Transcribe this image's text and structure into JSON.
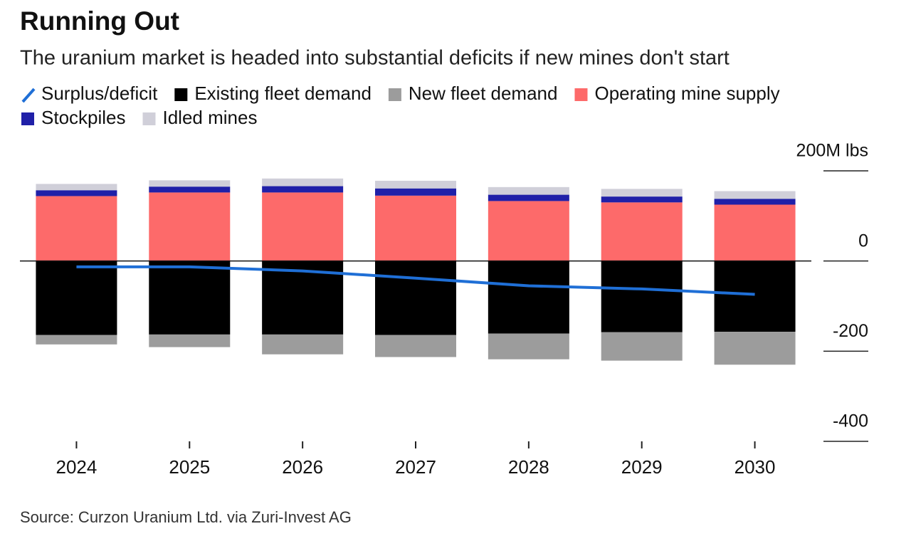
{
  "chart_data": {
    "type": "bar",
    "stacked": true,
    "title": "Running Out",
    "subtitle": "The uranium market is headed into substantial deficits if new mines don't start",
    "source": "Source: Curzon Uranium Ltd. via Zuri-Invest AG",
    "categories": [
      "2024",
      "2025",
      "2026",
      "2027",
      "2028",
      "2029",
      "2030"
    ],
    "series": [
      {
        "name": "Surplus/deficit",
        "type": "line",
        "color": "#1f6fd6",
        "values": [
          -13,
          -13,
          -22,
          -38,
          -55,
          -62,
          -74
        ]
      },
      {
        "name": "Existing fleet demand",
        "color": "#000000",
        "values": [
          -164,
          -163,
          -163,
          -164,
          -161,
          -158,
          -157
        ]
      },
      {
        "name": "New fleet demand",
        "color": "#9c9c9c",
        "values": [
          -21,
          -28,
          -44,
          -49,
          -57,
          -63,
          -73
        ]
      },
      {
        "name": "Operating mine supply",
        "color": "#fd6a6a",
        "values": [
          144,
          152,
          152,
          145,
          133,
          130,
          125
        ]
      },
      {
        "name": "Stockpiles",
        "color": "#2020a8",
        "values": [
          13,
          13,
          14,
          16,
          14,
          13,
          13
        ]
      },
      {
        "name": "Idled mines",
        "color": "#d0cfd9",
        "values": [
          14,
          14,
          17,
          17,
          17,
          17,
          17
        ]
      }
    ],
    "ylim": [
      -400,
      200
    ],
    "yticks": [
      {
        "value": 200,
        "label": "200M lbs"
      },
      0,
      -200,
      -400
    ]
  }
}
